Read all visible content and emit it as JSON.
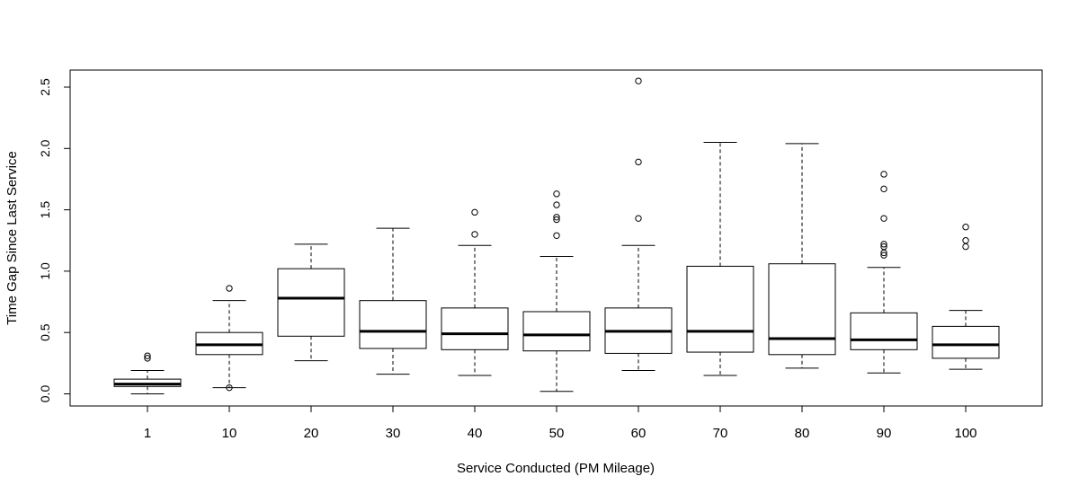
{
  "chart_data": {
    "type": "boxplot",
    "title": "",
    "xlabel": "Service Conducted (PM Mileage)",
    "ylabel": "Time Gap Since Last Service",
    "ylim": [
      -0.1,
      2.65
    ],
    "yticks": [
      "0.0",
      "0.5",
      "1.0",
      "1.5",
      "2.0",
      "2.5"
    ],
    "grid": false,
    "legend": "none",
    "categories": [
      "1",
      "10",
      "20",
      "30",
      "40",
      "50",
      "60",
      "70",
      "80",
      "90",
      "100"
    ],
    "boxes": [
      {
        "whisker_low": 0.0,
        "q1": 0.06,
        "median": 0.08,
        "q3": 0.12,
        "whisker_high": 0.19,
        "outliers": [
          0.29,
          0.31
        ]
      },
      {
        "whisker_low": 0.05,
        "q1": 0.32,
        "median": 0.4,
        "q3": 0.5,
        "whisker_high": 0.76,
        "outliers": [
          0.05,
          0.86
        ]
      },
      {
        "whisker_low": 0.27,
        "q1": 0.47,
        "median": 0.78,
        "q3": 1.02,
        "whisker_high": 1.22,
        "outliers": []
      },
      {
        "whisker_low": 0.16,
        "q1": 0.37,
        "median": 0.51,
        "q3": 0.76,
        "whisker_high": 1.35,
        "outliers": []
      },
      {
        "whisker_low": 0.15,
        "q1": 0.36,
        "median": 0.49,
        "q3": 0.7,
        "whisker_high": 1.21,
        "outliers": [
          1.3,
          1.48
        ]
      },
      {
        "whisker_low": 0.02,
        "q1": 0.35,
        "median": 0.48,
        "q3": 0.67,
        "whisker_high": 1.12,
        "outliers": [
          1.29,
          1.42,
          1.44,
          1.54,
          1.63
        ]
      },
      {
        "whisker_low": 0.19,
        "q1": 0.33,
        "median": 0.51,
        "q3": 0.7,
        "whisker_high": 1.21,
        "outliers": [
          1.43,
          1.89,
          2.55
        ]
      },
      {
        "whisker_low": 0.15,
        "q1": 0.34,
        "median": 0.51,
        "q3": 1.04,
        "whisker_high": 2.05,
        "outliers": []
      },
      {
        "whisker_low": 0.21,
        "q1": 0.32,
        "median": 0.45,
        "q3": 1.06,
        "whisker_high": 2.04,
        "outliers": []
      },
      {
        "whisker_low": 0.17,
        "q1": 0.36,
        "median": 0.44,
        "q3": 0.66,
        "whisker_high": 1.03,
        "outliers": [
          1.13,
          1.15,
          1.2,
          1.22,
          1.43,
          1.67,
          1.79
        ]
      },
      {
        "whisker_low": 0.2,
        "q1": 0.29,
        "median": 0.4,
        "q3": 0.55,
        "whisker_high": 0.68,
        "outliers": [
          1.2,
          1.25,
          1.36
        ]
      }
    ]
  }
}
